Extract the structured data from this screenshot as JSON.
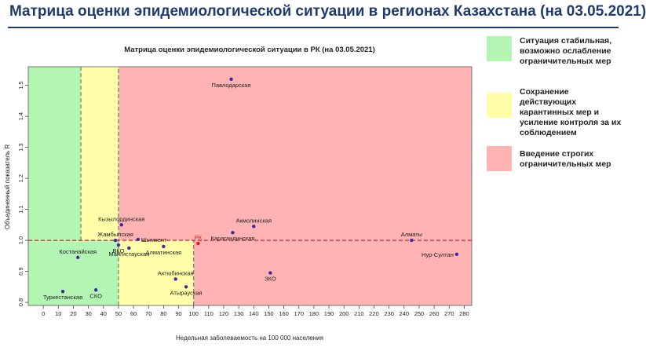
{
  "page_title": "Матрица оценки эпидемиологической ситуации в регионах Казахстана (на 03.05.2021)",
  "legend": [
    {
      "label": "Ситуация стабильная, возможно ослабление ограничительных мер",
      "color": "#b3f5b3"
    },
    {
      "label": "Сохранение действующих карантинных мер и усиление контроля за их соблюдением",
      "color": "#ffffaa"
    },
    {
      "label": "Введение строгих ограничительных мер",
      "color": "#ffb3b3"
    }
  ],
  "chart_data": {
    "type": "scatter",
    "title": "Матрица оценки эпидемиологической ситуации в РК (на 03.05.2021)",
    "xlabel": "Недельная заболеваемость на 100 000 населения",
    "ylabel": "Объединенный показатель R",
    "xlim": [
      -10,
      285
    ],
    "ylim": [
      0.79,
      1.56
    ],
    "x_ticks": [
      0,
      10,
      20,
      30,
      40,
      50,
      60,
      70,
      80,
      90,
      100,
      110,
      120,
      130,
      140,
      150,
      160,
      170,
      180,
      190,
      200,
      210,
      220,
      230,
      240,
      250,
      260,
      270,
      280
    ],
    "y_ticks": [
      0.8,
      0.9,
      1.0,
      1.1,
      1.2,
      1.3,
      1.4,
      1.5
    ],
    "y_tick_labels": [
      "0.8",
      "0.9",
      "1.0",
      "1.1",
      "1.2",
      "1.3",
      "1.4",
      "1.5"
    ],
    "zones": [
      {
        "x0": -10,
        "x1": 25,
        "y0": 1.0,
        "y1": 1.56,
        "color": "#b3f5b3"
      },
      {
        "x0": 25,
        "x1": 50,
        "y0": 1.0,
        "y1": 1.56,
        "color": "#ffffaa"
      },
      {
        "x0": 50,
        "x1": 285,
        "y0": 1.0,
        "y1": 1.56,
        "color": "#ffb3b3"
      },
      {
        "x0": -10,
        "x1": 50,
        "y0": 0.79,
        "y1": 1.0,
        "color": "#b3f5b3"
      },
      {
        "x0": 50,
        "x1": 100,
        "y0": 0.79,
        "y1": 1.0,
        "color": "#ffffaa"
      },
      {
        "x0": 100,
        "x1": 285,
        "y0": 0.79,
        "y1": 1.0,
        "color": "#ffb3b3"
      }
    ],
    "threshold_lines": [
      {
        "x": 25,
        "y0": 1.0,
        "y1": 1.56
      },
      {
        "x": 50,
        "y0": 0.79,
        "y1": 1.56
      },
      {
        "x": 100,
        "y0": 0.79,
        "y1": 1.0
      }
    ],
    "threshold_y": 1.0,
    "points": [
      {
        "label": "Павлодарская",
        "x": 125,
        "y": 1.52,
        "label_pos": "below"
      },
      {
        "label": "Кызылординская",
        "x": 52,
        "y": 1.05,
        "label_pos": "above"
      },
      {
        "label": "Жамбылская",
        "x": 48,
        "y": 1.0,
        "label_pos": "above"
      },
      {
        "label": "ВКО",
        "x": 50,
        "y": 0.985,
        "label_pos": "below"
      },
      {
        "label": "Мангистауская",
        "x": 57,
        "y": 0.975,
        "label_pos": "below"
      },
      {
        "label": "Шымкент",
        "x": 63,
        "y": 1.003,
        "label_pos": "right"
      },
      {
        "label": "Алматинская",
        "x": 80,
        "y": 0.98,
        "label_pos": "below"
      },
      {
        "label": "Костанайская",
        "x": 23,
        "y": 0.945,
        "label_pos": "above"
      },
      {
        "label": "Туркестанская",
        "x": 13,
        "y": 0.835,
        "label_pos": "below"
      },
      {
        "label": "СКО",
        "x": 35,
        "y": 0.84,
        "label_pos": "below"
      },
      {
        "label": "Актюбинская",
        "x": 88,
        "y": 0.875,
        "label_pos": "above"
      },
      {
        "label": "Атырауская",
        "x": 95,
        "y": 0.85,
        "label_pos": "below"
      },
      {
        "label": "РК",
        "x": 103,
        "y": 0.99,
        "label_pos": "above",
        "color": "#e31a1c"
      },
      {
        "label": "Карагандинская",
        "x": 126,
        "y": 1.025,
        "label_pos": "below"
      },
      {
        "label": "Акмолинская",
        "x": 140,
        "y": 1.045,
        "label_pos": "above"
      },
      {
        "label": "ЗКО",
        "x": 151,
        "y": 0.895,
        "label_pos": "below"
      },
      {
        "label": "Алматы",
        "x": 245,
        "y": 1.0,
        "label_pos": "above"
      },
      {
        "label": "Нур-Султан",
        "x": 275,
        "y": 0.955,
        "label_pos": "left"
      }
    ]
  }
}
